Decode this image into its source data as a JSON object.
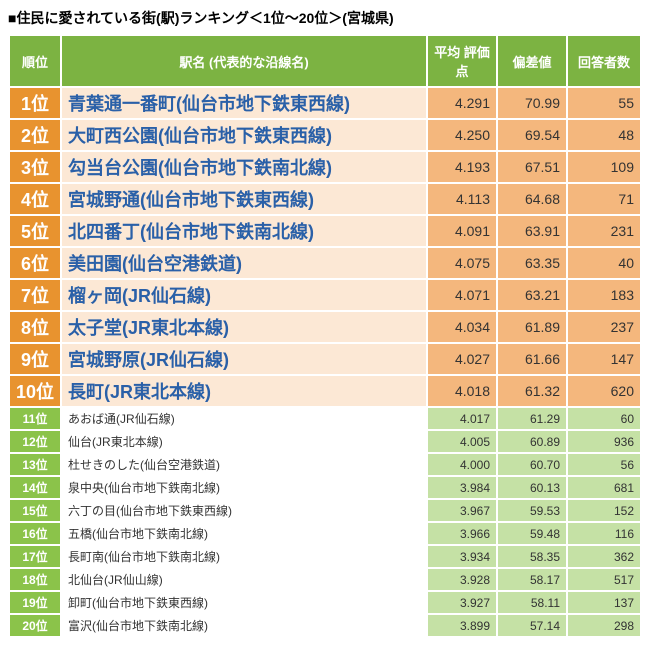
{
  "title": "■住民に愛されている街(駅)ランキング＜1位～20位＞(宮城県)",
  "headers": {
    "rank": "順位",
    "station": "駅名\n(代表的な沿線名)",
    "avg": "平均\n評価点",
    "deviation": "偏差値",
    "respondents": "回答者数"
  },
  "rows": [
    {
      "rank": "1位",
      "station": "青葉通一番町(仙台市地下鉄東西線)",
      "avg": "4.291",
      "dev": "70.99",
      "resp": "55",
      "top": true
    },
    {
      "rank": "2位",
      "station": "大町西公園(仙台市地下鉄東西線)",
      "avg": "4.250",
      "dev": "69.54",
      "resp": "48",
      "top": true
    },
    {
      "rank": "3位",
      "station": "勾当台公園(仙台市地下鉄南北線)",
      "avg": "4.193",
      "dev": "67.51",
      "resp": "109",
      "top": true
    },
    {
      "rank": "4位",
      "station": "宮城野通(仙台市地下鉄東西線)",
      "avg": "4.113",
      "dev": "64.68",
      "resp": "71",
      "top": true
    },
    {
      "rank": "5位",
      "station": "北四番丁(仙台市地下鉄南北線)",
      "avg": "4.091",
      "dev": "63.91",
      "resp": "231",
      "top": true
    },
    {
      "rank": "6位",
      "station": "美田園(仙台空港鉄道)",
      "avg": "4.075",
      "dev": "63.35",
      "resp": "40",
      "top": true
    },
    {
      "rank": "7位",
      "station": "榴ヶ岡(JR仙石線)",
      "avg": "4.071",
      "dev": "63.21",
      "resp": "183",
      "top": true
    },
    {
      "rank": "8位",
      "station": "太子堂(JR東北本線)",
      "avg": "4.034",
      "dev": "61.89",
      "resp": "237",
      "top": true
    },
    {
      "rank": "9位",
      "station": "宮城野原(JR仙石線)",
      "avg": "4.027",
      "dev": "61.66",
      "resp": "147",
      "top": true
    },
    {
      "rank": "10位",
      "station": "長町(JR東北本線)",
      "avg": "4.018",
      "dev": "61.32",
      "resp": "620",
      "top": true
    },
    {
      "rank": "11位",
      "station": "あおば通(JR仙石線)",
      "avg": "4.017",
      "dev": "61.29",
      "resp": "60",
      "top": false
    },
    {
      "rank": "12位",
      "station": "仙台(JR東北本線)",
      "avg": "4.005",
      "dev": "60.89",
      "resp": "936",
      "top": false
    },
    {
      "rank": "13位",
      "station": "杜せきのした(仙台空港鉄道)",
      "avg": "4.000",
      "dev": "60.70",
      "resp": "56",
      "top": false
    },
    {
      "rank": "14位",
      "station": "泉中央(仙台市地下鉄南北線)",
      "avg": "3.984",
      "dev": "60.13",
      "resp": "681",
      "top": false
    },
    {
      "rank": "15位",
      "station": "六丁の目(仙台市地下鉄東西線)",
      "avg": "3.967",
      "dev": "59.53",
      "resp": "152",
      "top": false
    },
    {
      "rank": "16位",
      "station": "五橋(仙台市地下鉄南北線)",
      "avg": "3.966",
      "dev": "59.48",
      "resp": "116",
      "top": false
    },
    {
      "rank": "17位",
      "station": "長町南(仙台市地下鉄南北線)",
      "avg": "3.934",
      "dev": "58.35",
      "resp": "362",
      "top": false
    },
    {
      "rank": "18位",
      "station": "北仙台(JR仙山線)",
      "avg": "3.928",
      "dev": "58.17",
      "resp": "517",
      "top": false
    },
    {
      "rank": "19位",
      "station": "卸町(仙台市地下鉄東西線)",
      "avg": "3.927",
      "dev": "58.11",
      "resp": "137",
      "top": false
    },
    {
      "rank": "20位",
      "station": "富沢(仙台市地下鉄南北線)",
      "avg": "3.899",
      "dev": "57.14",
      "resp": "298",
      "top": false
    }
  ]
}
